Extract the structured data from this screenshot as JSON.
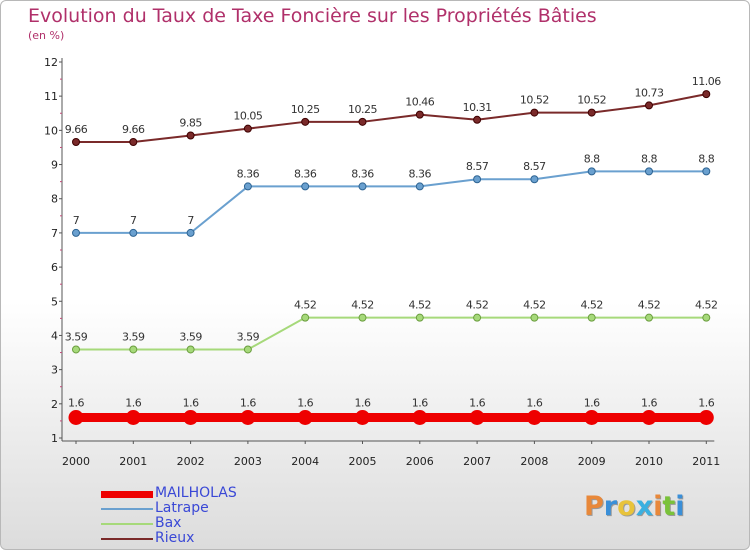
{
  "header": {
    "title": "Evolution du Taux de Taxe Foncière sur les Propriétés Bâties",
    "subtitle": "(en %)"
  },
  "logo": {
    "text": "Proxiti",
    "colors": [
      "#e8883a",
      "#3a8fd8",
      "#e8c33a",
      "#3ab0e0",
      "#e8883a",
      "#7ac23a",
      "#3a8fd8"
    ]
  },
  "chart_data": {
    "type": "line",
    "x": [
      "2000",
      "2001",
      "2002",
      "2003",
      "2004",
      "2005",
      "2006",
      "2007",
      "2008",
      "2009",
      "2010",
      "2011"
    ],
    "ylim": [
      1,
      12
    ],
    "yticks": [
      1,
      2,
      3,
      4,
      5,
      6,
      7,
      8,
      9,
      10,
      11,
      12
    ],
    "grid": false,
    "legend": "bottom-left",
    "series": [
      {
        "name": "MAILHOLAS",
        "color": "#ee0000",
        "width": 9,
        "marker": 7,
        "values": [
          1.6,
          1.6,
          1.6,
          1.6,
          1.6,
          1.6,
          1.6,
          1.6,
          1.6,
          1.6,
          1.6,
          1.6
        ],
        "labels": [
          "1.6",
          "1.6",
          "1.6",
          "1.6",
          "1.6",
          "1.6",
          "1.6",
          "1.6",
          "1.6",
          "1.6",
          "1.6",
          "1.6"
        ]
      },
      {
        "name": "Latrape",
        "color": "#6aa0cf",
        "width": 2,
        "marker": 3.5,
        "values": [
          7,
          7,
          7,
          8.36,
          8.36,
          8.36,
          8.36,
          8.57,
          8.57,
          8.8,
          8.8,
          8.8
        ],
        "labels": [
          "7",
          "7",
          "7",
          "8.36",
          "8.36",
          "8.36",
          "8.36",
          "8.57",
          "8.57",
          "8.8",
          "8.8",
          "8.8"
        ]
      },
      {
        "name": "Bax",
        "color": "#a6d97a",
        "width": 2,
        "marker": 3.5,
        "values": [
          3.59,
          3.59,
          3.59,
          3.59,
          4.52,
          4.52,
          4.52,
          4.52,
          4.52,
          4.52,
          4.52,
          4.52
        ],
        "labels": [
          "3.59",
          "3.59",
          "3.59",
          "3.59",
          "4.52",
          "4.52",
          "4.52",
          "4.52",
          "4.52",
          "4.52",
          "4.52",
          "4.52"
        ]
      },
      {
        "name": "Rieux",
        "color": "#7a2a2a",
        "width": 2,
        "marker": 3.5,
        "values": [
          9.66,
          9.66,
          9.85,
          10.05,
          10.25,
          10.25,
          10.46,
          10.31,
          10.52,
          10.52,
          10.73,
          11.06
        ],
        "labels": [
          "9.66",
          "9.66",
          "9.85",
          "10.05",
          "10.25",
          "10.25",
          "10.46",
          "10.31",
          "10.52",
          "10.52",
          "10.73",
          "11.06"
        ]
      }
    ]
  }
}
